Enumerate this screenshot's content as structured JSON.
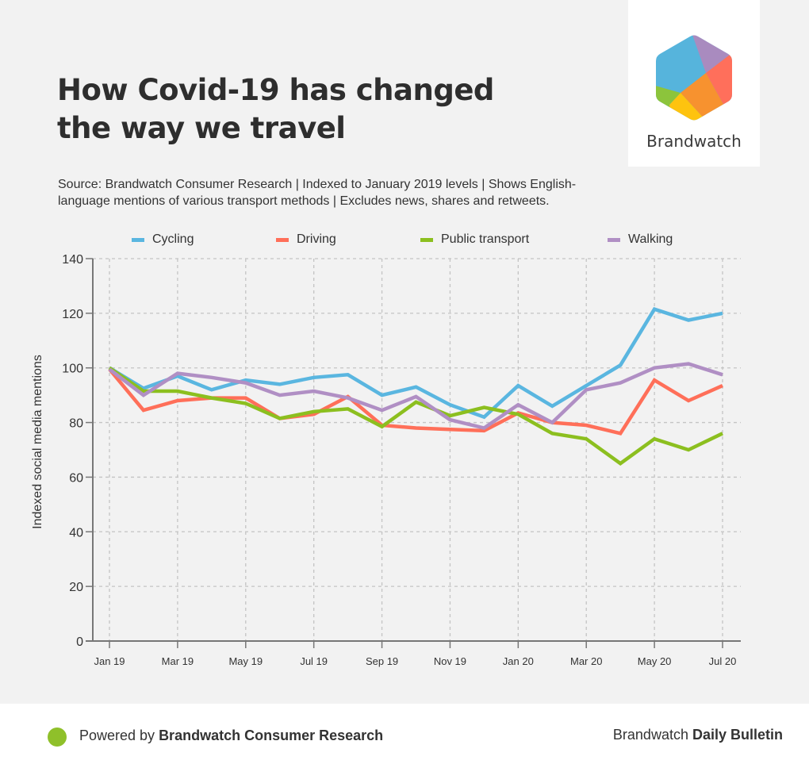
{
  "header": {
    "title_line1": "How Covid-19 has changed",
    "title_line2": "the way we travel",
    "subtitle_line1": "Source: Brandwatch Consumer Research | Indexed to January 2019 levels | Shows English-",
    "subtitle_line2": "language mentions of various transport methods  | Excludes news, shares and retweets."
  },
  "logo": {
    "name": "Brandwatch",
    "icon": "brandwatch-hexagon-logo",
    "colors": [
      "#56b4dc",
      "#a98bbf",
      "#ff6f5b",
      "#f7922f",
      "#fec30f",
      "#8cc43c"
    ]
  },
  "footer": {
    "powered_prefix": "Powered by ",
    "powered_brand": "Brandwatch Consumer Research",
    "right_prefix": "Brandwatch ",
    "right_bold": "Daily Bulletin",
    "dot_color": "#8fc02a"
  },
  "chart_data": {
    "type": "line",
    "title": "How Covid-19 has changed the way we travel",
    "xlabel": "",
    "ylabel": "Indexed social media mentions",
    "ylim": [
      0,
      140
    ],
    "yticks": [
      0,
      20,
      40,
      60,
      80,
      100,
      120,
      140
    ],
    "grid": true,
    "legend_position": "top",
    "x": [
      "Jan 19",
      "Feb 19",
      "Mar 19",
      "Apr 19",
      "May 19",
      "Jun 19",
      "Jul 19",
      "Aug 19",
      "Sep 19",
      "Oct 19",
      "Nov 19",
      "Dec 19",
      "Jan 20",
      "Feb 20",
      "Mar 20",
      "Apr 20",
      "May 20",
      "Jun 20",
      "Jul 20"
    ],
    "xtick_labels": [
      "Jan 19",
      "Mar 19",
      "May 19",
      "Jul 19",
      "Sep 19",
      "Nov 19",
      "Jan 20",
      "Mar 20",
      "May 20",
      "Jul 20"
    ],
    "series": [
      {
        "name": "Cycling",
        "color": "#5ab6e0",
        "values": [
          100,
          92.5,
          97,
          92,
          95.5,
          94,
          96.5,
          97.5,
          90,
          93,
          86.5,
          82,
          93.5,
          86,
          93.5,
          101,
          121.5,
          117.5,
          120
        ]
      },
      {
        "name": "Driving",
        "color": "#ff6f59",
        "values": [
          99.5,
          84.5,
          88,
          89,
          89,
          81.5,
          83,
          89.5,
          79,
          78,
          77.5,
          77,
          83.5,
          80,
          79,
          76,
          95.5,
          88,
          93.5
        ]
      },
      {
        "name": "Public transport",
        "color": "#8cbf1f",
        "values": [
          100,
          91.5,
          91.5,
          89,
          87,
          81.5,
          84,
          85,
          78.5,
          87.5,
          82.5,
          85.5,
          83,
          76,
          74,
          65,
          74,
          70,
          76
        ]
      },
      {
        "name": "Walking",
        "color": "#b08fc4",
        "values": [
          99.5,
          90,
          98,
          96.5,
          94.5,
          90,
          91.5,
          89,
          84.5,
          89.5,
          81,
          78,
          86.5,
          80,
          92,
          94.5,
          100,
          101.5,
          97.5
        ]
      }
    ]
  }
}
